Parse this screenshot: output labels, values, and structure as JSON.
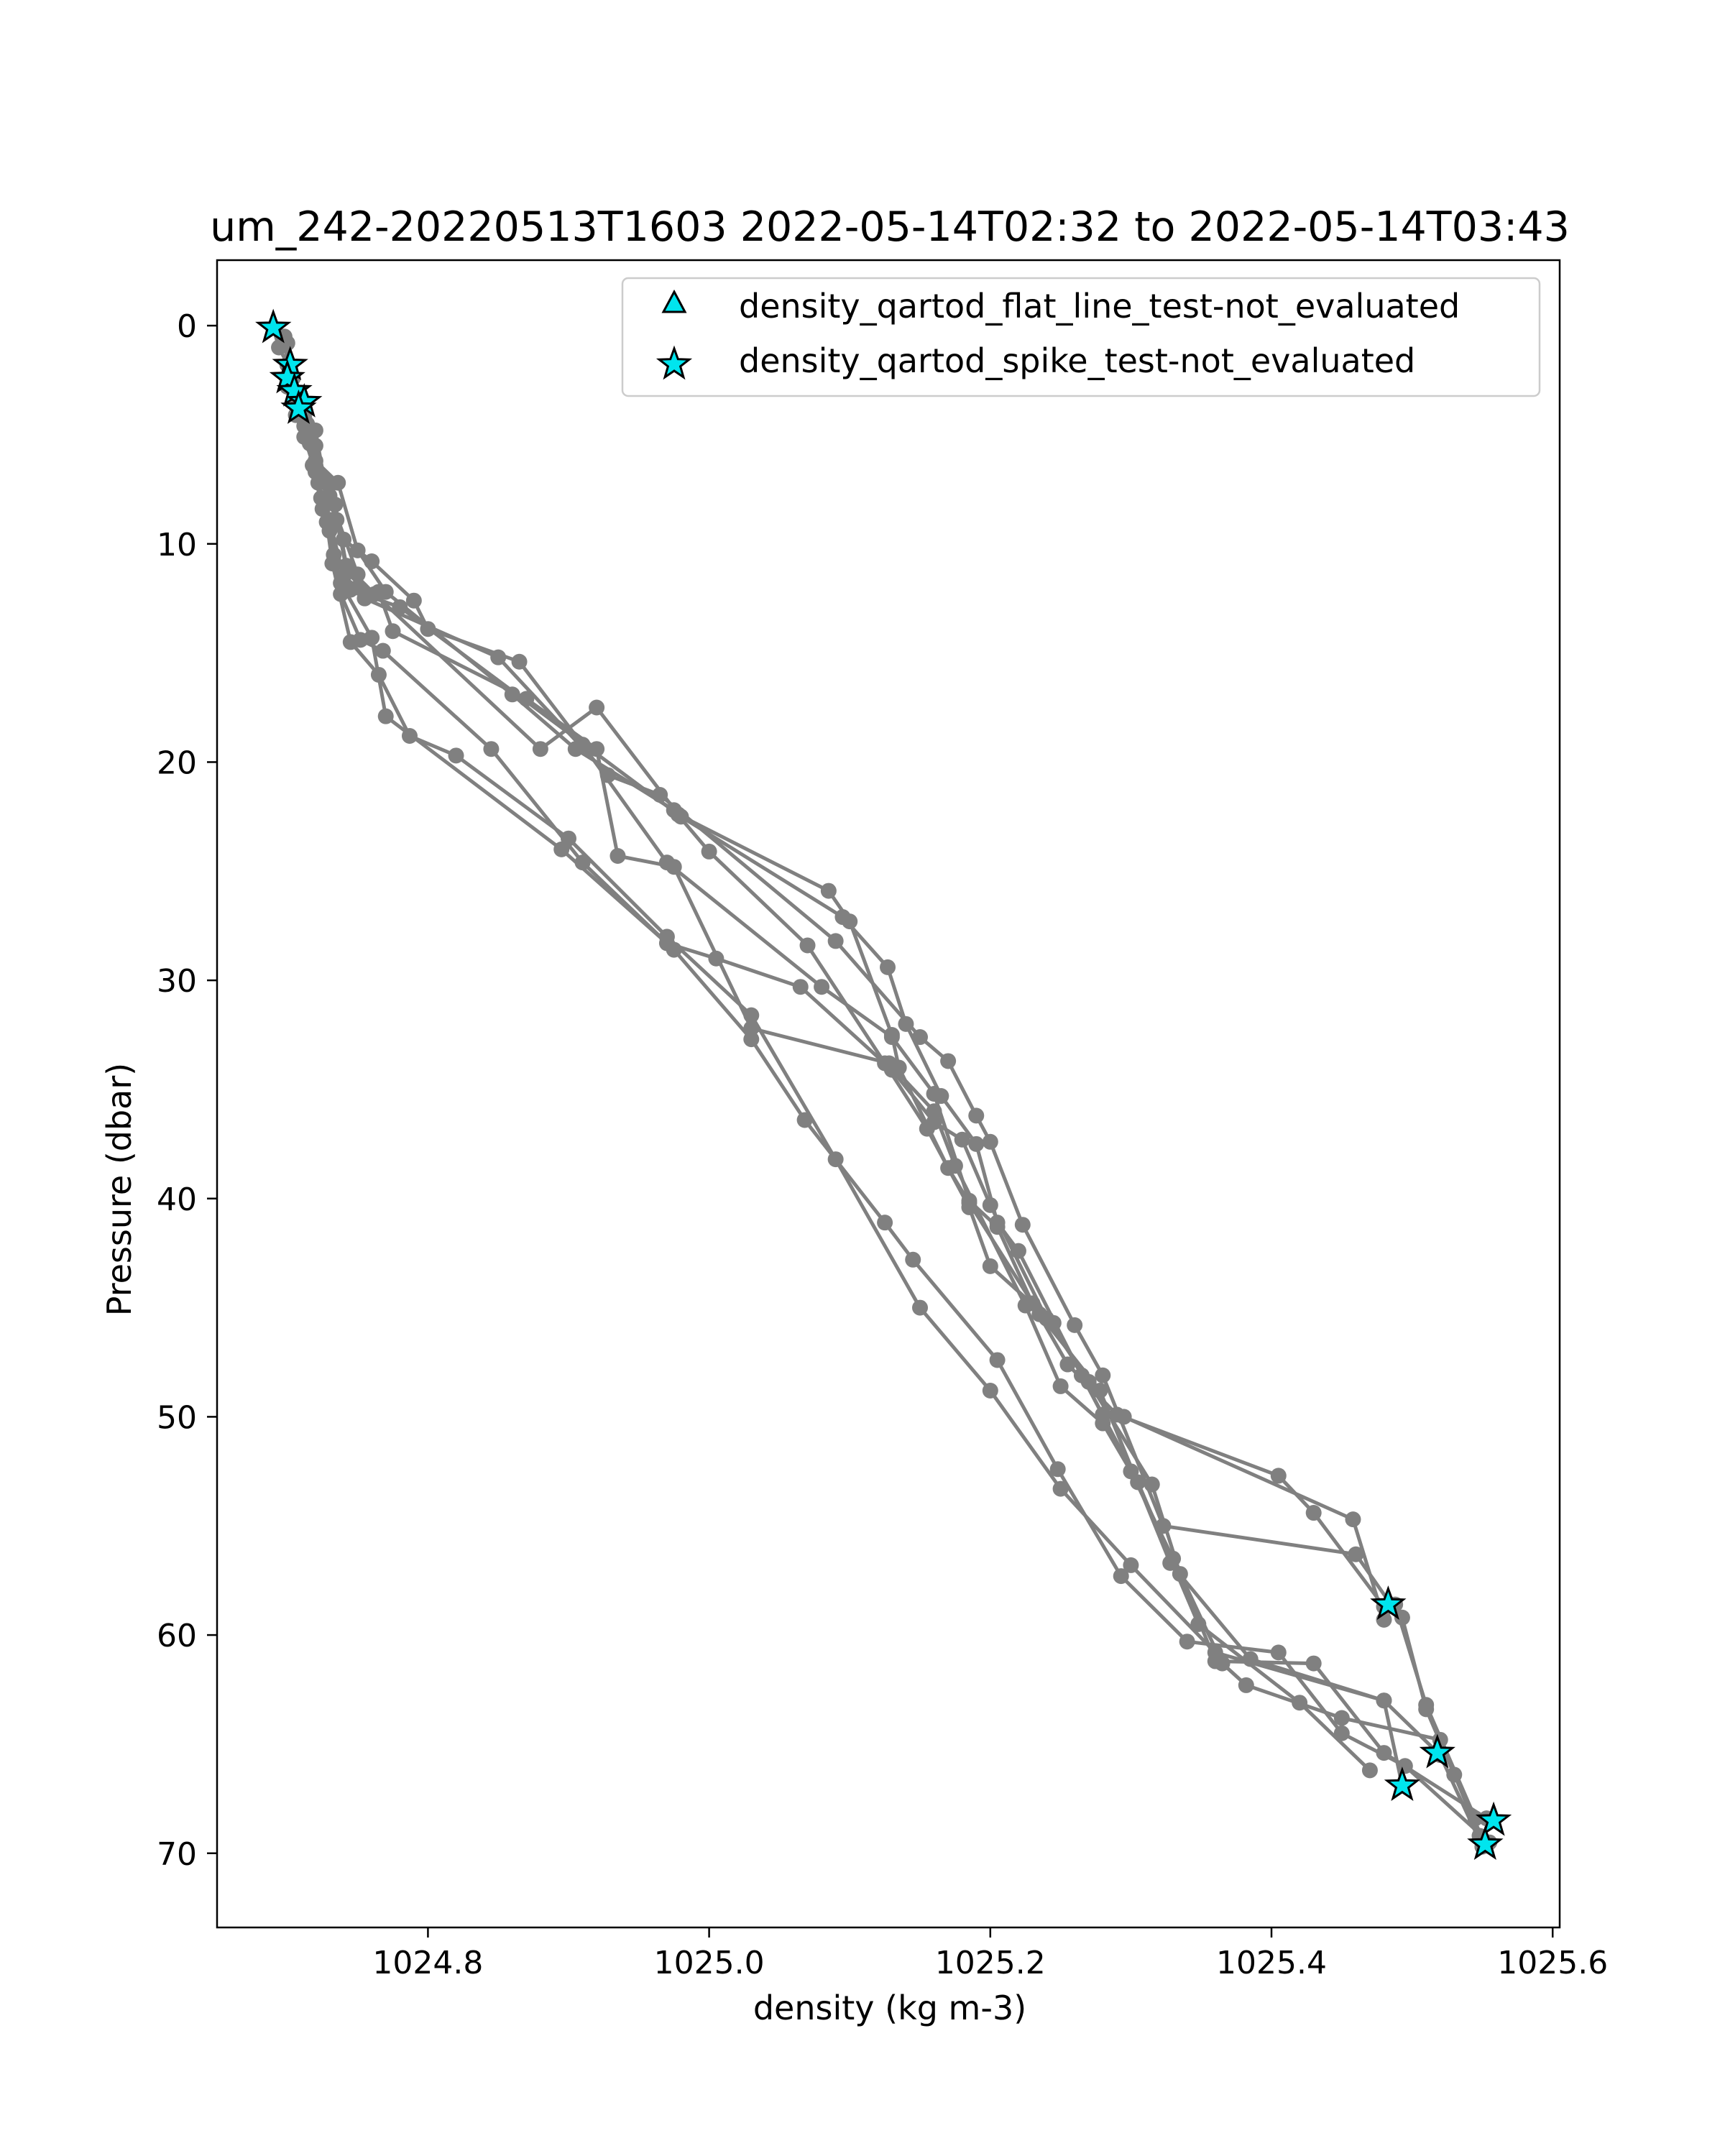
{
  "chart_data": {
    "type": "scatter",
    "title": "um_242-20220513T1603 2022-05-14T02:32 to 2022-05-14T03:43",
    "xlabel": "density (kg m-3)",
    "ylabel": "Pressure (dbar)",
    "xlim": [
      1024.65,
      1025.605
    ],
    "ylim": [
      73.4,
      -3.0
    ],
    "y_inverted": true,
    "xticks": [
      1024.8,
      1025.0,
      1025.2,
      1025.4,
      1025.6
    ],
    "xtick_labels": [
      "1024.8",
      "1025.0",
      "1025.2",
      "1025.4",
      "1025.6"
    ],
    "yticks": [
      0,
      10,
      20,
      30,
      40,
      50,
      60,
      70
    ],
    "ytick_labels": [
      "0",
      "10",
      "20",
      "30",
      "40",
      "50",
      "60",
      "70"
    ],
    "grid": false,
    "legend_position": "top-right",
    "colors": {
      "profile": "#808080",
      "marker_fill": "#00e5ee",
      "marker_edge": "#000000"
    },
    "legend": [
      {
        "label": "density_qartod_flat_line_test-not_evaluated",
        "marker": "triangle"
      },
      {
        "label": "density_qartod_spike_test-not_evaluated",
        "marker": "star"
      }
    ],
    "profiles": [
      {
        "points": [
          [
            1024.69,
            0.1
          ],
          [
            1024.694,
            1.0
          ],
          [
            1024.702,
            2.0
          ],
          [
            1024.71,
            3.5
          ],
          [
            1024.718,
            5.5
          ],
          [
            1024.722,
            7.2
          ],
          [
            1024.728,
            9.0
          ],
          [
            1024.732,
            10.9
          ],
          [
            1024.745,
            14.5
          ],
          [
            1024.765,
            16.0
          ],
          [
            1024.787,
            18.8
          ],
          [
            1024.82,
            19.7
          ],
          [
            1024.9,
            23.5
          ],
          [
            1024.97,
            28.0
          ],
          [
            1025.03,
            31.6
          ],
          [
            1025.09,
            38.2
          ],
          [
            1025.15,
            45.0
          ],
          [
            1025.2,
            48.8
          ],
          [
            1025.25,
            53.3
          ],
          [
            1025.3,
            56.8
          ],
          [
            1025.36,
            60.8
          ],
          [
            1025.48,
            63.0
          ],
          [
            1025.52,
            65.5
          ],
          [
            1025.55,
            69.7
          ]
        ]
      },
      {
        "points": [
          [
            1024.698,
            0.5
          ],
          [
            1024.7,
            1.8
          ],
          [
            1024.705,
            3.0
          ],
          [
            1024.712,
            4.6
          ],
          [
            1024.718,
            6.4
          ],
          [
            1024.725,
            8.4
          ],
          [
            1024.733,
            10.5
          ],
          [
            1024.738,
            12.3
          ],
          [
            1024.752,
            14.4
          ],
          [
            1024.768,
            14.9
          ],
          [
            1024.845,
            19.4
          ],
          [
            1024.91,
            24.6
          ],
          [
            1024.975,
            28.6
          ],
          [
            1025.03,
            32.7
          ],
          [
            1025.068,
            36.4
          ],
          [
            1025.125,
            41.1
          ],
          [
            1025.145,
            42.8
          ],
          [
            1025.205,
            47.4
          ],
          [
            1025.248,
            52.4
          ],
          [
            1025.293,
            57.3
          ],
          [
            1025.34,
            60.3
          ],
          [
            1025.405,
            60.8
          ],
          [
            1025.45,
            64.5
          ],
          [
            1025.495,
            66.0
          ],
          [
            1025.555,
            69.5
          ]
        ]
      },
      {
        "points": [
          [
            1024.7,
            0.8
          ],
          [
            1024.704,
            2.4
          ],
          [
            1024.71,
            3.8
          ],
          [
            1024.716,
            5.4
          ],
          [
            1024.724,
            7.9
          ],
          [
            1024.73,
            9.4
          ],
          [
            1024.738,
            11.8
          ],
          [
            1024.76,
            14.3
          ],
          [
            1024.77,
            17.9
          ],
          [
            1024.895,
            24.0
          ],
          [
            1024.97,
            28.3
          ],
          [
            1025.005,
            29.0
          ],
          [
            1025.065,
            30.3
          ],
          [
            1025.13,
            34.1
          ],
          [
            1025.16,
            36.5
          ],
          [
            1025.18,
            37.3
          ],
          [
            1025.2,
            40.3
          ],
          [
            1025.24,
            45.5
          ],
          [
            1025.27,
            48.4
          ],
          [
            1025.315,
            53.1
          ],
          [
            1025.335,
            57.2
          ],
          [
            1025.36,
            61.2
          ],
          [
            1025.43,
            61.3
          ],
          [
            1025.48,
            65.4
          ],
          [
            1025.553,
            68.4
          ]
        ]
      },
      {
        "points": [
          [
            1024.7,
            2.8
          ],
          [
            1024.706,
            4.1
          ],
          [
            1024.712,
            5.1
          ],
          [
            1024.72,
            6.7
          ],
          [
            1024.73,
            8.9
          ],
          [
            1024.74,
            11.5
          ],
          [
            1024.75,
            12.0
          ],
          [
            1024.765,
            12.2
          ],
          [
            1024.775,
            14.0
          ],
          [
            1024.87,
            17.1
          ],
          [
            1024.92,
            19.4
          ],
          [
            1024.935,
            24.3
          ],
          [
            1024.975,
            24.8
          ],
          [
            1025.03,
            32.2
          ],
          [
            1025.128,
            33.8
          ],
          [
            1025.16,
            36.0
          ],
          [
            1025.175,
            38.5
          ],
          [
            1025.225,
            44.9
          ],
          [
            1025.25,
            48.6
          ],
          [
            1025.28,
            50.3
          ],
          [
            1025.3,
            52.5
          ],
          [
            1025.33,
            56.5
          ],
          [
            1025.365,
            61.3
          ],
          [
            1025.382,
            62.3
          ],
          [
            1025.45,
            63.8
          ],
          [
            1025.52,
            64.8
          ],
          [
            1025.548,
            69.2
          ]
        ]
      },
      {
        "points": [
          [
            1024.708,
            3.9
          ],
          [
            1024.716,
            5.4
          ],
          [
            1024.73,
            7.3
          ],
          [
            1024.74,
            9.8
          ],
          [
            1024.76,
            10.8
          ],
          [
            1024.79,
            12.6
          ],
          [
            1024.8,
            13.9
          ],
          [
            1024.865,
            15.4
          ],
          [
            1024.91,
            19.2
          ],
          [
            1024.97,
            24.6
          ],
          [
            1025.08,
            30.3
          ],
          [
            1025.13,
            32.6
          ],
          [
            1025.16,
            35.2
          ],
          [
            1025.185,
            40.1
          ],
          [
            1025.205,
            41.3
          ],
          [
            1025.23,
            44.8
          ],
          [
            1025.255,
            47.6
          ],
          [
            1025.29,
            49.9
          ],
          [
            1025.405,
            52.7
          ],
          [
            1025.43,
            54.4
          ],
          [
            1025.48,
            58.7
          ],
          [
            1025.493,
            59.2
          ],
          [
            1025.51,
            63.4
          ],
          [
            1025.53,
            66.4
          ],
          [
            1025.552,
            69.6
          ]
        ]
      },
      {
        "points": [
          [
            1024.712,
            4.2
          ],
          [
            1024.72,
            6.2
          ],
          [
            1024.736,
            7.2
          ],
          [
            1024.75,
            10.3
          ],
          [
            1024.77,
            12.2
          ],
          [
            1024.86,
            16.9
          ],
          [
            1024.905,
            19.4
          ],
          [
            1024.975,
            22.2
          ],
          [
            1025.0,
            24.1
          ],
          [
            1025.07,
            28.4
          ],
          [
            1025.125,
            33.8
          ],
          [
            1025.155,
            36.8
          ],
          [
            1025.185,
            40.4
          ],
          [
            1025.2,
            43.1
          ],
          [
            1025.245,
            45.7
          ],
          [
            1025.28,
            49.9
          ],
          [
            1025.295,
            50.0
          ],
          [
            1025.458,
            54.7
          ],
          [
            1025.48,
            59.3
          ],
          [
            1025.488,
            58.6
          ],
          [
            1025.51,
            63.2
          ],
          [
            1025.545,
            68.4
          ]
        ]
      },
      {
        "points": [
          [
            1024.71,
            3.6
          ],
          [
            1024.72,
            4.8
          ],
          [
            1024.726,
            7.0
          ],
          [
            1024.734,
            8.2
          ],
          [
            1024.742,
            11.0
          ],
          [
            1024.762,
            12.3
          ],
          [
            1024.88,
            19.4
          ],
          [
            1024.92,
            17.5
          ],
          [
            1024.978,
            22.4
          ],
          [
            1025.085,
            25.9
          ],
          [
            1025.1,
            27.3
          ],
          [
            1025.13,
            32.5
          ],
          [
            1025.135,
            34.0
          ],
          [
            1025.17,
            38.6
          ],
          [
            1025.185,
            40.2
          ],
          [
            1025.235,
            45.3
          ],
          [
            1025.278,
            48.8
          ],
          [
            1025.328,
            56.7
          ],
          [
            1025.385,
            61.1
          ],
          [
            1025.48,
            63.0
          ],
          [
            1025.493,
            66.9
          ]
        ]
      },
      {
        "points": [
          [
            1024.714,
            4.5
          ],
          [
            1024.722,
            6.8
          ],
          [
            1024.735,
            8.9
          ],
          [
            1024.745,
            12.1
          ],
          [
            1024.78,
            12.9
          ],
          [
            1024.98,
            22.5
          ],
          [
            1025.095,
            27.1
          ],
          [
            1025.127,
            29.4
          ],
          [
            1025.14,
            32.0
          ],
          [
            1025.165,
            35.3
          ],
          [
            1025.19,
            37.5
          ],
          [
            1025.205,
            41.1
          ],
          [
            1025.22,
            42.4
          ],
          [
            1025.265,
            48.1
          ],
          [
            1025.305,
            53.0
          ],
          [
            1025.348,
            59.5
          ],
          [
            1025.42,
            63.1
          ],
          [
            1025.47,
            66.2
          ]
        ]
      },
      {
        "points": [
          [
            1024.72,
            5.5
          ],
          [
            1024.73,
            7.8
          ],
          [
            1024.75,
            11.4
          ],
          [
            1024.755,
            12.5
          ],
          [
            1024.85,
            15.2
          ],
          [
            1024.928,
            20.6
          ],
          [
            1024.965,
            21.5
          ],
          [
            1025.09,
            28.2
          ],
          [
            1025.15,
            32.6
          ],
          [
            1025.17,
            33.7
          ],
          [
            1025.19,
            36.2
          ],
          [
            1025.2,
            37.4
          ],
          [
            1025.223,
            41.2
          ],
          [
            1025.26,
            45.8
          ],
          [
            1025.28,
            48.1
          ],
          [
            1025.323,
            55.0
          ],
          [
            1025.46,
            56.3
          ],
          [
            1025.485,
            58.6
          ]
        ]
      }
    ],
    "star_points": [
      [
        1024.69,
        0.1
      ],
      [
        1024.702,
        1.8
      ],
      [
        1024.7,
        2.4
      ],
      [
        1024.705,
        3.0
      ],
      [
        1024.712,
        3.5
      ],
      [
        1024.708,
        3.8
      ],
      [
        1025.483,
        58.6
      ],
      [
        1025.518,
        65.4
      ],
      [
        1025.493,
        66.9
      ],
      [
        1025.558,
        68.5
      ],
      [
        1025.552,
        69.6
      ]
    ]
  }
}
